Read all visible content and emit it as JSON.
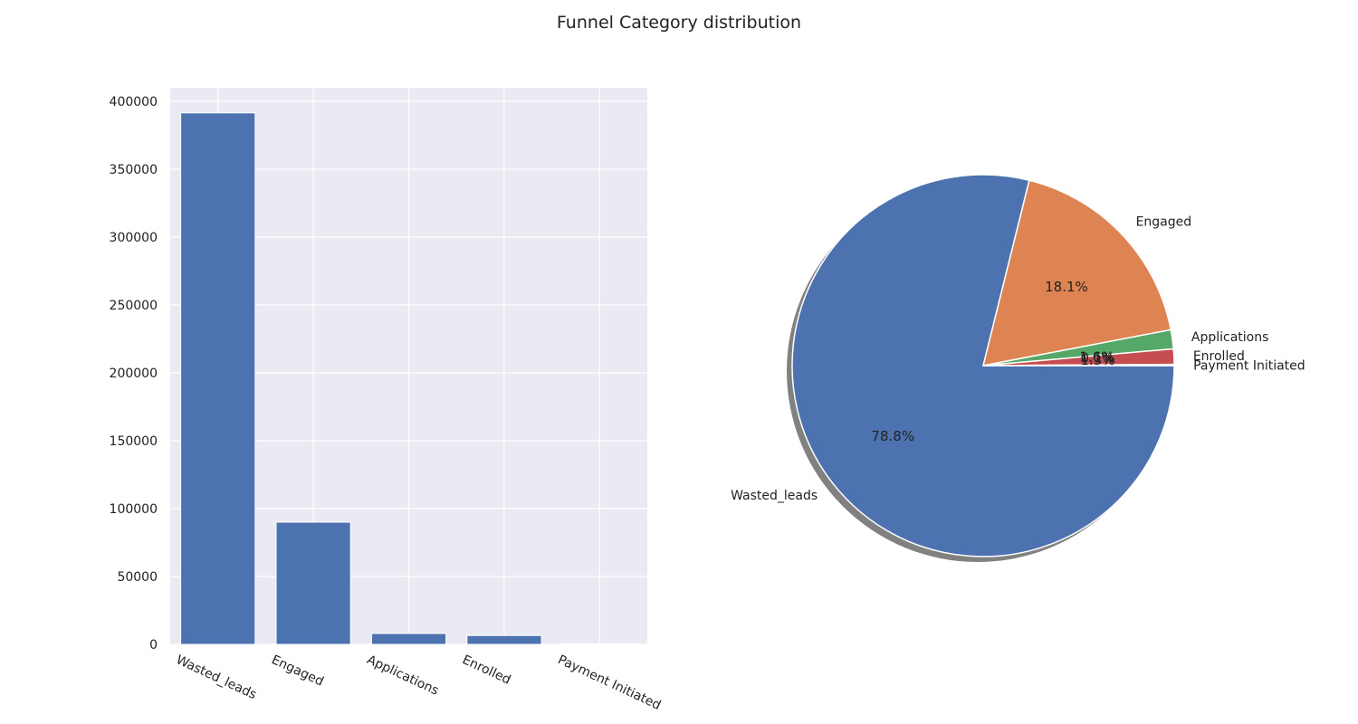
{
  "figure": {
    "title": "Funnel Category distribution"
  },
  "chart_data": [
    {
      "type": "bar",
      "categories": [
        "Wasted_leads",
        "Engaged",
        "Applications",
        "Enrolled",
        "Payment Initiated"
      ],
      "values": [
        391500,
        90000,
        8000,
        6500,
        500
      ],
      "ylim": [
        0,
        410000
      ],
      "yticks": [
        0,
        50000,
        100000,
        150000,
        200000,
        250000,
        300000,
        350000,
        400000
      ],
      "xlabel": "",
      "ylabel": "",
      "grid": true,
      "color": "#4c72b0"
    },
    {
      "type": "pie",
      "categories": [
        "Wasted_leads",
        "Engaged",
        "Applications",
        "Enrolled",
        "Payment Initiated"
      ],
      "percent_labels": [
        "78.8%",
        "18.1%",
        "1.6%",
        "1.3%",
        "0.1%"
      ],
      "values": [
        78.8,
        18.1,
        1.6,
        1.3,
        0.1
      ],
      "colors": [
        "#4c72b0",
        "#dd8452",
        "#55a868",
        "#c44e52",
        "#8172b3"
      ],
      "shadow": true,
      "start_angle": 0,
      "direction": "clockwise"
    }
  ]
}
